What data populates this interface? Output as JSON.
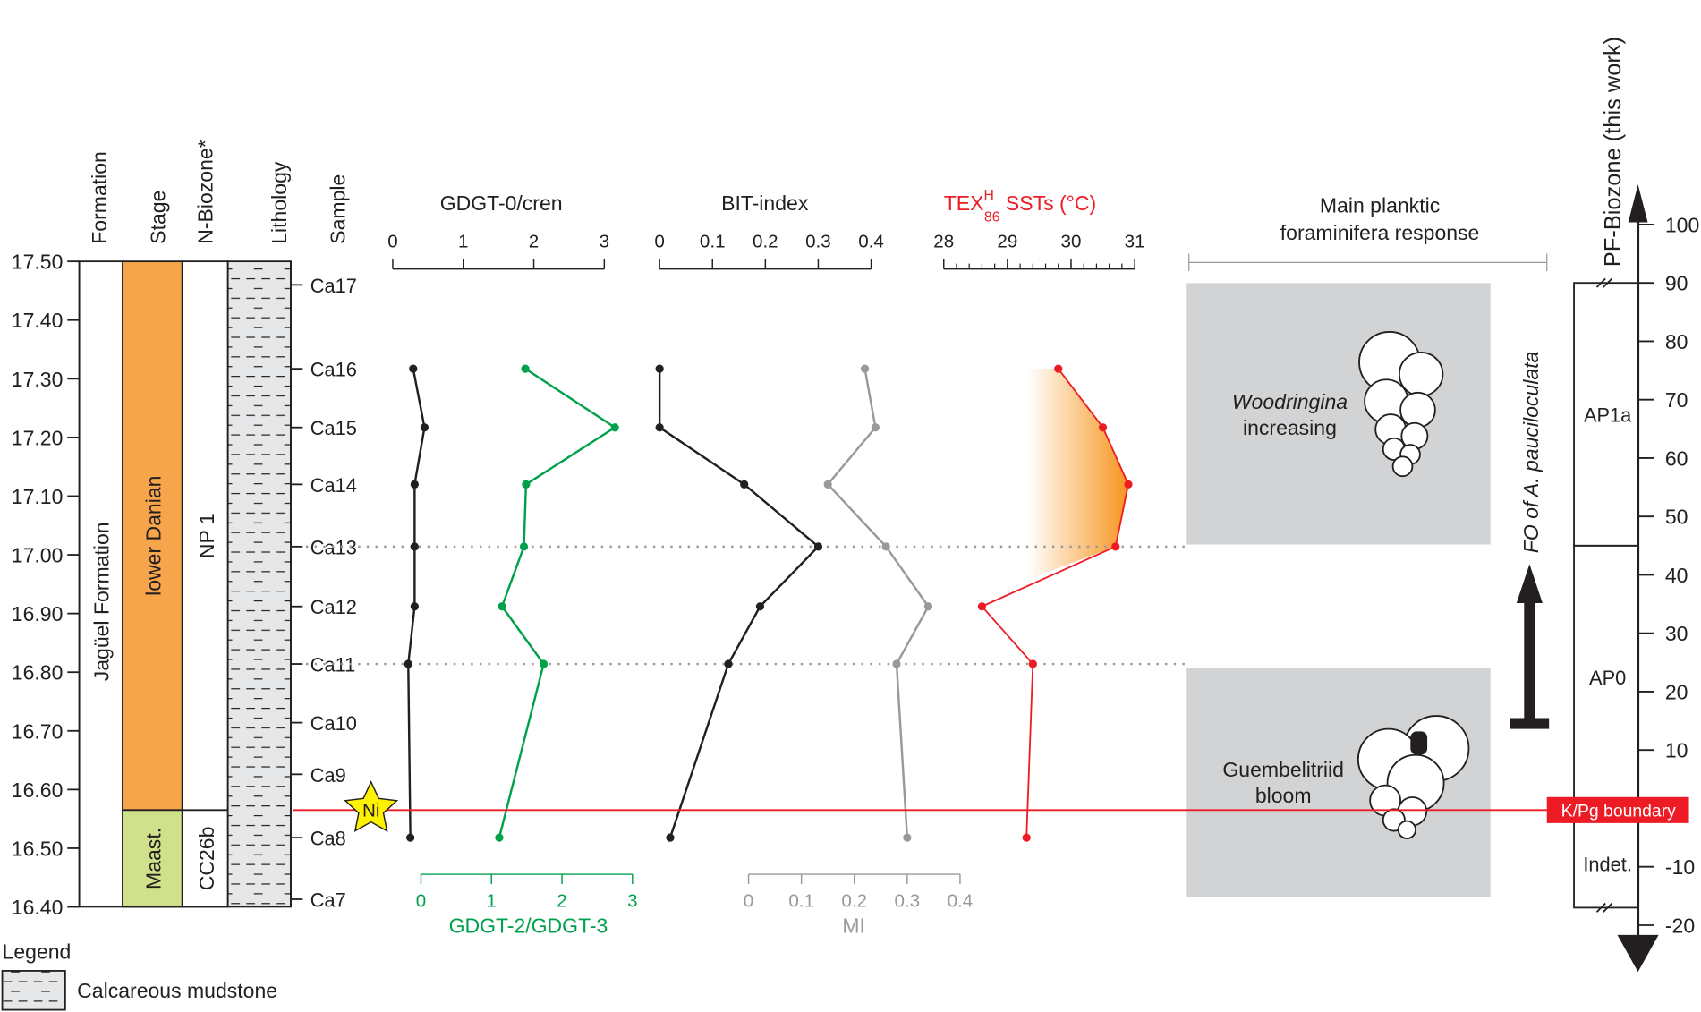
{
  "chart_data": {
    "type": "line",
    "depth_axis": {
      "min": 16.4,
      "max": 17.5,
      "ticks": [
        "17.50",
        "17.40",
        "17.30",
        "17.20",
        "17.10",
        "17.00",
        "16.90",
        "16.80",
        "16.70",
        "16.60",
        "16.50",
        "16.40"
      ]
    },
    "columns": {
      "formation": "Formation",
      "stage": "Stage",
      "nbiozone": "N-Biozone*",
      "lithology": "Lithology",
      "sample": "Sample"
    },
    "formation_name": "Jagüel Formation",
    "stages": [
      {
        "label": "lower Danian",
        "from": 16.565,
        "to": 17.5,
        "color": "#f7a54a"
      },
      {
        "label": "Maast.",
        "from": 16.4,
        "to": 16.565,
        "color": "#cfe18a"
      }
    ],
    "nbiozones": [
      {
        "label": "NP 1",
        "from": 16.565,
        "to": 17.5
      },
      {
        "label": "CC26b",
        "from": 16.4,
        "to": 16.565
      }
    ],
    "samples": [
      {
        "label": "Ca17",
        "depth": 17.46
      },
      {
        "label": "Ca16",
        "depth": 17.317
      },
      {
        "label": "Ca15",
        "depth": 17.217
      },
      {
        "label": "Ca14",
        "depth": 17.12
      },
      {
        "label": "Ca13",
        "depth": 17.014
      },
      {
        "label": "Ca12",
        "depth": 16.912
      },
      {
        "label": "Ca11",
        "depth": 16.814
      },
      {
        "label": "Ca10",
        "depth": 16.714
      },
      {
        "label": "Ca9",
        "depth": 16.626
      },
      {
        "label": "Ca8",
        "depth": 16.518
      },
      {
        "label": "Ca7",
        "depth": 16.413
      }
    ],
    "series": [
      {
        "name": "GDGT-0/cren",
        "color": "#231f20",
        "axis": "top",
        "range": [
          0,
          3
        ],
        "ticks": [
          "0",
          "1",
          "2",
          "3"
        ],
        "samples": [
          "Ca16",
          "Ca15",
          "Ca14",
          "Ca13",
          "Ca12",
          "Ca11",
          "Ca8"
        ],
        "values": [
          0.29,
          0.45,
          0.31,
          0.31,
          0.31,
          0.22,
          0.25
        ]
      },
      {
        "name": "GDGT-2/GDGT-3",
        "color": "#00a14b",
        "axis": "bottom",
        "range": [
          0,
          3
        ],
        "ticks": [
          "0",
          "1",
          "2",
          "3"
        ],
        "samples": [
          "Ca16",
          "Ca15",
          "Ca14",
          "Ca13",
          "Ca12",
          "Ca11",
          "Ca8"
        ],
        "values": [
          1.48,
          2.75,
          1.49,
          1.46,
          1.15,
          1.74,
          1.11
        ]
      },
      {
        "name": "BIT-index",
        "color": "#231f20",
        "axis": "top",
        "range": [
          0,
          0.4
        ],
        "ticks": [
          "0",
          "0.1",
          "0.2",
          "0.3",
          "0.4"
        ],
        "samples": [
          "Ca16",
          "Ca15",
          "Ca14",
          "Ca13",
          "Ca12",
          "Ca11",
          "Ca8"
        ],
        "values": [
          0.0,
          0.0,
          0.16,
          0.3,
          0.19,
          0.13,
          0.02
        ]
      },
      {
        "name": "MI",
        "color": "#999999",
        "axis": "bottom",
        "range": [
          0,
          0.4
        ],
        "ticks": [
          "0",
          "0.1",
          "0.2",
          "0.3",
          "0.4"
        ],
        "samples": [
          "Ca16",
          "Ca15",
          "Ca14",
          "Ca13",
          "Ca12",
          "Ca11",
          "Ca8"
        ],
        "values": [
          0.22,
          0.24,
          0.15,
          0.26,
          0.34,
          0.28,
          0.3
        ]
      },
      {
        "name": "TEXH86 SSTs (°C)",
        "color": "#ed1c24",
        "axis": "top",
        "range": [
          28,
          31
        ],
        "ticks": [
          "28",
          "29",
          "30",
          "31"
        ],
        "samples": [
          "Ca16",
          "Ca15",
          "Ca14",
          "Ca13",
          "Ca12",
          "Ca11",
          "Ca8"
        ],
        "values": [
          29.8,
          30.5,
          30.9,
          30.7,
          28.6,
          29.4,
          29.3
        ]
      }
    ],
    "tex_label": {
      "main": "TEX",
      "sup": "H",
      "sub": "86",
      "rest": " SSTs (°C)"
    },
    "response": {
      "title1": "Main planktic",
      "title2": "foraminifera response",
      "upper1": "Woodringina",
      "upper2": "increasing",
      "lower1": "Guembelitriid",
      "lower2": "bloom"
    },
    "fo_label": "FO of A. pauciloculata",
    "ni_label": "Ni",
    "kpg_label": "K/Pg boundary",
    "kpg_depth": 16.565,
    "pf_axis": {
      "title": "PF-Biozone (this work)",
      "min": -20,
      "max": 100,
      "ticks": [
        "100",
        "90",
        "80",
        "70",
        "60",
        "50",
        "40",
        "30",
        "20",
        "10",
        "-10",
        "-20"
      ]
    },
    "pf_zones": [
      {
        "label": "AP1a",
        "from": 45,
        "to": 90
      },
      {
        "label": "AP0",
        "from": 0,
        "to": 45
      },
      {
        "label": "Indet.",
        "from": -17,
        "to": 0
      }
    ],
    "legend": {
      "title": "Legend",
      "item": "Calcareous mudstone"
    }
  }
}
